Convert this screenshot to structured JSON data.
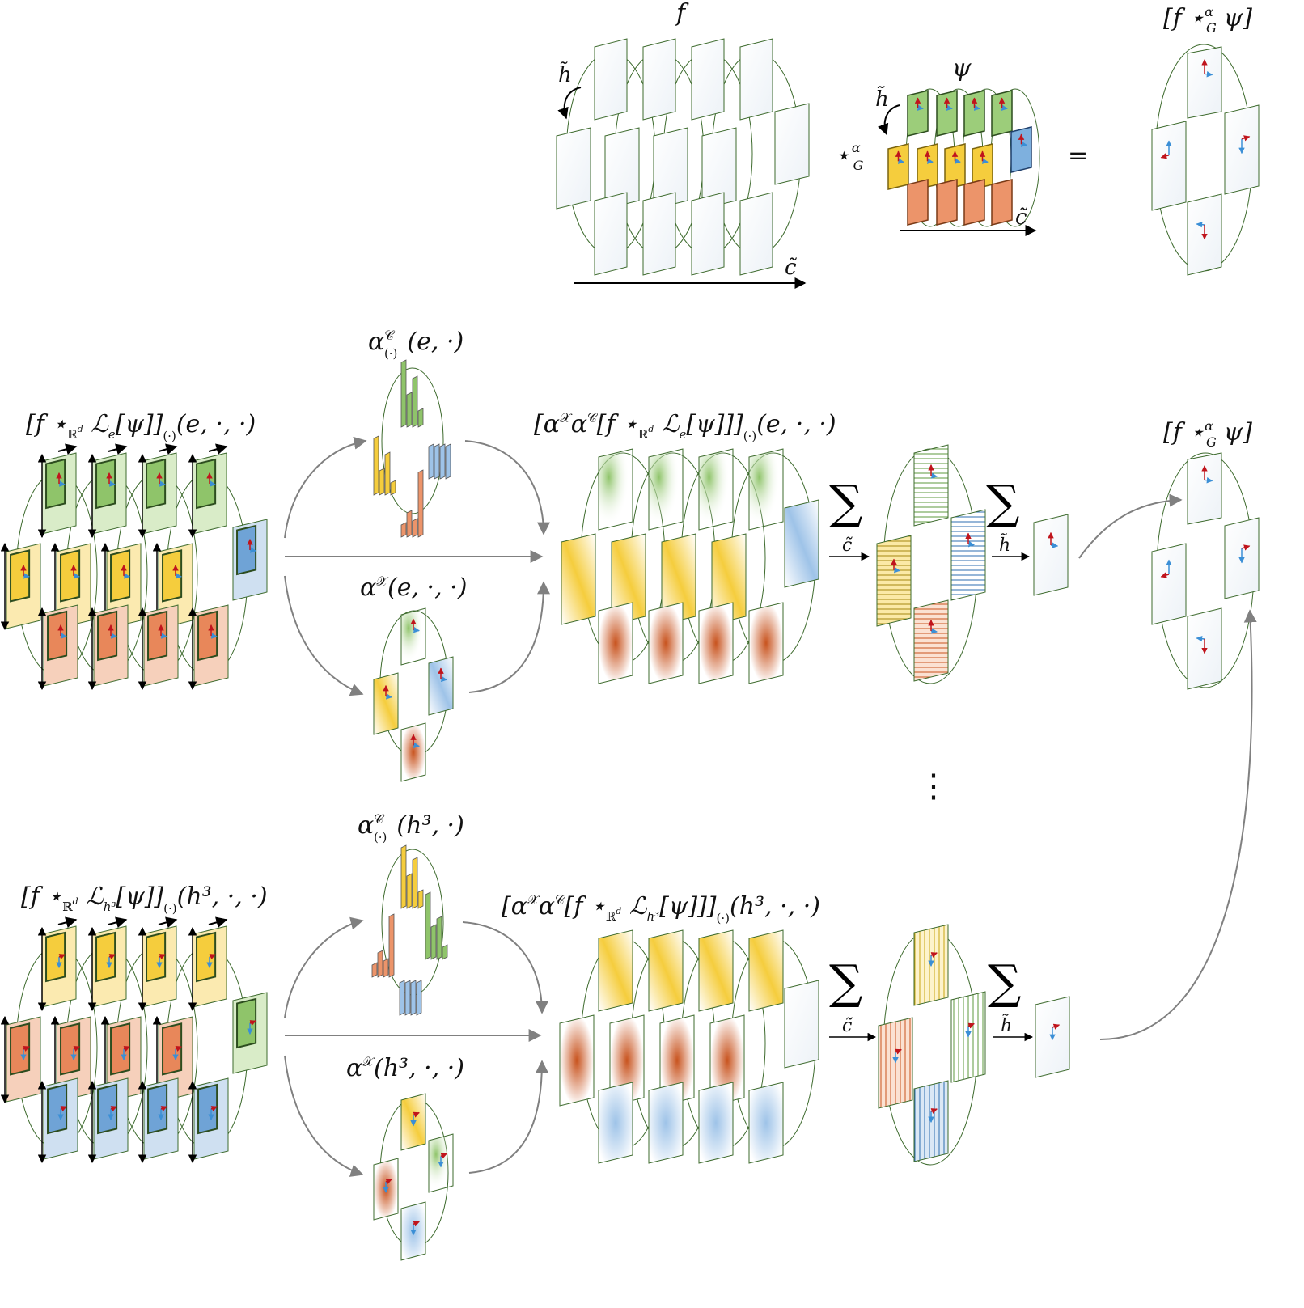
{
  "top": {
    "f_label": "f",
    "h_tilde": "h̃",
    "c_tilde": "c̃",
    "psi_label": "ψ",
    "conv_op": "⋆",
    "conv_sup": "α",
    "conv_sub": "G",
    "equals": "=",
    "result_label": "[f ⋆",
    "result_label_tail": "ψ]"
  },
  "row1": {
    "input_label_a": "[f ⋆",
    "input_sub": "ℝ",
    "input_sub_sup": "d",
    "input_label_b": "ℒ",
    "input_label_b_sub": "e",
    "input_label_c": "[ψ]]",
    "input_label_c_sub": "(·)",
    "input_label_d": "(e, ·, ·)",
    "alphaC_label": "α",
    "alphaC_sup": "𝒞",
    "alphaC_sub": "(·)",
    "alphaC_args": "(e, ·)",
    "alphaX_label": "α",
    "alphaX_sup": "𝒳",
    "alphaX_args": "(e, ·, ·)",
    "result_label": "[α",
    "result_sup": "𝒳",
    "result_mid": "α",
    "result_sup2": "𝒞",
    "result_body": "[f ⋆",
    "result_body_sub": "ℝ",
    "result_body_sub_sup": "d",
    "result_body2": "ℒ",
    "result_body2_sub": "e",
    "result_body3": "[ψ]]]",
    "result_body3_sub": "(·)",
    "result_args": "(e, ·, ·)",
    "sum_symbol": "∑",
    "sum_c": "c̃",
    "sum_h": "h̃",
    "final_label": "[f ⋆",
    "final_tail": "ψ]"
  },
  "row2": {
    "input_label_a": "[f ⋆",
    "input_sub": "ℝ",
    "input_sub_sup": "d",
    "input_label_b": "ℒ",
    "input_label_b_sub": "h³",
    "input_label_c": "[ψ]]",
    "input_label_c_sub": "(·)",
    "input_label_d": "(h³, ·, ·)",
    "alphaC_label": "α",
    "alphaC_sup": "𝒞",
    "alphaC_sub": "(·)",
    "alphaC_args": "(h³, ·)",
    "alphaX_label": "α",
    "alphaX_sup": "𝒳",
    "alphaX_args": "(h³, ·, ·)",
    "result_label": "[α",
    "result_sup": "𝒳",
    "result_mid": "α",
    "result_sup2": "𝒞",
    "result_body": "[f ⋆",
    "result_body_sub": "ℝ",
    "result_body_sub_sup": "d",
    "result_body2": "ℒ",
    "result_body2_sub": "h³",
    "result_body3": "[ψ]]]",
    "result_body3_sub": "(·)",
    "result_args": "(h³, ·, ·)",
    "sum_symbol": "∑",
    "sum_c": "c̃",
    "sum_h": "h̃"
  },
  "ellipsis": "⋮",
  "colors": {
    "green": "#8fc46a",
    "green_light": "#d9ecc8",
    "yellow": "#f5cd3d",
    "yellow_light": "#fbeab0",
    "orange": "#e8875a",
    "orange_light": "#f6d0bb",
    "blue": "#6fa3d6",
    "blue_light": "#cfe0f1",
    "frame": "#3e6b2e",
    "red_arrow": "#c0141c",
    "blue_arrow": "#3b8fd6",
    "gray_arrow": "#808080"
  }
}
